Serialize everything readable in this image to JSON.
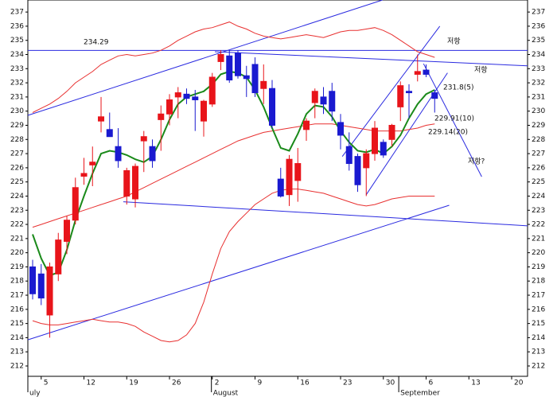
{
  "chart_data": {
    "type": "candlestick",
    "up_color": "#e8141a",
    "down_color": "#1a1ad0",
    "open": [
      219.0,
      218.5,
      215.6,
      218.5,
      220.8,
      222.3,
      225.4,
      226.2,
      229.3,
      228.7,
      227.5,
      224.0,
      223.8,
      227.9,
      227.5,
      229.4,
      229.8,
      231.0,
      231.2,
      231.0,
      229.3,
      230.5,
      233.5,
      233.9,
      234.1,
      232.5,
      233.3,
      231.6,
      231.6,
      225.2,
      224.1,
      225.1,
      228.7,
      230.6,
      231.0,
      231.4,
      229.2,
      227.5,
      226.8,
      226.0,
      227.0,
      227.8,
      228.0,
      230.3,
      231.4,
      232.6,
      232.9,
      231.3
    ],
    "high": [
      219.5,
      219.2,
      219.3,
      221.4,
      222.6,
      225.3,
      226.7,
      227.5,
      231.0,
      229.9,
      228.8,
      226.0,
      226.3,
      228.6,
      228.0,
      230.4,
      231.2,
      231.7,
      231.6,
      231.5,
      230.8,
      232.7,
      234.3,
      234.3,
      234.3,
      233.2,
      233.8,
      233.3,
      232.2,
      226.0,
      226.9,
      227.4,
      229.5,
      231.6,
      231.7,
      232.0,
      229.8,
      228.5,
      227.0,
      227.3,
      229.3,
      228.0,
      229.1,
      232.1,
      231.9,
      234.0,
      233.3,
      231.5
    ],
    "low": [
      216.7,
      216.3,
      214.0,
      218.0,
      219.9,
      222.0,
      224.8,
      224.7,
      228.5,
      228.3,
      226.0,
      223.4,
      223.2,
      225.7,
      226.0,
      227.2,
      229.0,
      229.5,
      230.5,
      228.6,
      228.2,
      230.3,
      232.9,
      232.0,
      232.3,
      231.0,
      231.0,
      230.5,
      228.8,
      223.9,
      223.3,
      223.6,
      227.9,
      229.5,
      229.8,
      229.3,
      227.3,
      225.8,
      224.3,
      224.0,
      226.5,
      226.7,
      227.5,
      229.3,
      229.5,
      232.1,
      232.4,
      229.9
    ],
    "close": [
      217.1,
      216.8,
      219.0,
      220.9,
      222.3,
      224.6,
      225.6,
      226.4,
      229.6,
      228.2,
      226.5,
      225.8,
      226.1,
      228.2,
      226.5,
      229.8,
      230.8,
      231.3,
      230.9,
      230.8,
      230.7,
      232.4,
      234.0,
      232.2,
      232.5,
      232.3,
      231.3,
      232.1,
      229.0,
      224.0,
      226.6,
      226.3,
      229.3,
      231.4,
      230.5,
      230.0,
      228.3,
      226.3,
      224.8,
      227.0,
      228.8,
      226.9,
      229.0,
      231.8,
      231.3,
      232.8,
      232.6,
      230.9
    ],
    "series": [
      {
        "color": "#e83030",
        "values": [
          229.9,
          230.2,
          230.5,
          230.9,
          231.4,
          232.0,
          232.4,
          232.8,
          233.3,
          233.6,
          233.9,
          234.0,
          233.9,
          234.0,
          234.1,
          234.3,
          234.6,
          235.0,
          235.3,
          235.6,
          235.8,
          235.9,
          236.1,
          236.3,
          236.0,
          235.8,
          235.5,
          235.3,
          235.2,
          235.1,
          235.2,
          235.3,
          235.4,
          235.3,
          235.2,
          235.4,
          235.6,
          235.7,
          235.7,
          235.8,
          235.9,
          235.7,
          235.4,
          235.0,
          234.6,
          234.2,
          234.0,
          233.8
        ]
      },
      {
        "color": "#e83030",
        "values": [
          221.8,
          222.0,
          222.2,
          222.4,
          222.6,
          222.8,
          223.0,
          223.2,
          223.4,
          223.6,
          223.8,
          224.0,
          224.3,
          224.6,
          224.9,
          225.2,
          225.5,
          225.8,
          226.1,
          226.4,
          226.7,
          227.0,
          227.3,
          227.6,
          227.9,
          228.1,
          228.3,
          228.5,
          228.6,
          228.7,
          228.8,
          228.9,
          229.0,
          229.1,
          229.1,
          229.1,
          229.0,
          228.9,
          228.8,
          228.7,
          228.6,
          228.6,
          228.6,
          228.6,
          228.7,
          228.8,
          229.0,
          229.1
        ]
      },
      {
        "color": "#e83030",
        "values": [
          215.2,
          215.0,
          214.9,
          214.9,
          215.0,
          215.1,
          215.2,
          215.3,
          215.2,
          215.1,
          215.1,
          215.0,
          214.8,
          214.4,
          214.1,
          213.8,
          213.7,
          213.8,
          214.2,
          215.0,
          216.5,
          218.5,
          220.3,
          221.5,
          222.2,
          222.8,
          223.4,
          223.8,
          224.2,
          224.4,
          224.5,
          224.5,
          224.4,
          224.3,
          224.2,
          224.0,
          223.8,
          223.6,
          223.4,
          223.3,
          223.4,
          223.6,
          223.8,
          223.9,
          224.0,
          224.0,
          224.0,
          224.0
        ]
      },
      {
        "color": "#1a8a1a",
        "values": [
          221.3,
          219.6,
          218.4,
          218.6,
          220.2,
          222.3,
          224.0,
          225.6,
          227.0,
          227.2,
          227.1,
          226.9,
          226.6,
          226.4,
          226.8,
          228.0,
          229.4,
          230.5,
          231.0,
          231.2,
          231.4,
          231.9,
          232.6,
          232.8,
          232.7,
          232.4,
          231.5,
          230.3,
          228.8,
          227.4,
          227.2,
          228.4,
          229.8,
          230.4,
          230.3,
          229.6,
          228.6,
          227.8,
          227.2,
          227.1,
          227.3,
          227.0,
          227.5,
          228.3,
          229.5,
          230.5,
          231.2,
          231.5
        ]
      }
    ],
    "trendlines": [
      {
        "color": "#2a2ae0",
        "x": [
          -0.56,
          57.86
        ],
        "y": [
          234.29,
          234.29
        ]
      },
      {
        "color": "#2a2ae0",
        "x": [
          -0.56,
          40.9
        ],
        "y": [
          229.7,
          237.85
        ]
      },
      {
        "color": "#2a2ae0",
        "x": [
          21.3,
          57.86
        ],
        "y": [
          234.2,
          233.2
        ]
      },
      {
        "color": "#2a2ae0",
        "x": [
          10.6,
          57.86
        ],
        "y": [
          223.6,
          221.9
        ]
      },
      {
        "color": "#2a2ae0",
        "x": [
          -0.56,
          48.7
        ],
        "y": [
          213.85,
          223.35
        ]
      },
      {
        "color": "#2a2ae0",
        "x": [
          36.2,
          47.6
        ],
        "y": [
          226.8,
          236.0
        ]
      },
      {
        "color": "#2a2ae0",
        "x": [
          39.0,
          48.5
        ],
        "y": [
          224.1,
          232.7
        ]
      },
      {
        "color": "#2a2ae0",
        "x": [
          45.7,
          52.5
        ],
        "y": [
          233.35,
          225.37
        ]
      }
    ],
    "annotations": [
      {
        "text": "234.29",
        "color": "#2a2ae0"
      },
      {
        "text": "저항",
        "color": "#2a2ae0"
      },
      {
        "text": "저항",
        "color": "#2a2ae0"
      },
      {
        "text": "231.8(5)",
        "color": "#2a2ae0"
      },
      {
        "text": "229.91(10)",
        "color": "#2a2ae0"
      },
      {
        "text": "229.14(20)",
        "color": "#2a2ae0"
      },
      {
        "text": "저항?",
        "color": "#e8141a"
      }
    ],
    "xlim": [
      -0.56,
      57.86
    ],
    "xticks": [
      {
        "value": 1,
        "label": "5"
      },
      {
        "value": 6,
        "label": "12"
      },
      {
        "value": 11,
        "label": "19"
      },
      {
        "value": 16,
        "label": "26"
      },
      {
        "value": 21,
        "label": "2"
      },
      {
        "value": 26,
        "label": "9"
      },
      {
        "value": 31,
        "label": "16"
      },
      {
        "value": 36,
        "label": "23"
      },
      {
        "value": 41,
        "label": "30"
      },
      {
        "value": 46,
        "label": "6"
      },
      {
        "value": 51,
        "label": "13"
      },
      {
        "value": 56,
        "label": "20"
      }
    ],
    "month_labels": [
      {
        "value": -0.56,
        "label": "uly"
      },
      {
        "value": 20.9,
        "label": "August"
      },
      {
        "value": 42.8,
        "label": "September"
      }
    ],
    "ylim": [
      211.27,
      237.85
    ],
    "yticks": [
      212,
      213,
      214,
      215,
      216,
      217,
      218,
      219,
      220,
      221,
      222,
      223,
      224,
      225,
      226,
      227,
      228,
      229,
      230,
      231,
      232,
      233,
      234,
      235,
      236,
      237
    ]
  }
}
